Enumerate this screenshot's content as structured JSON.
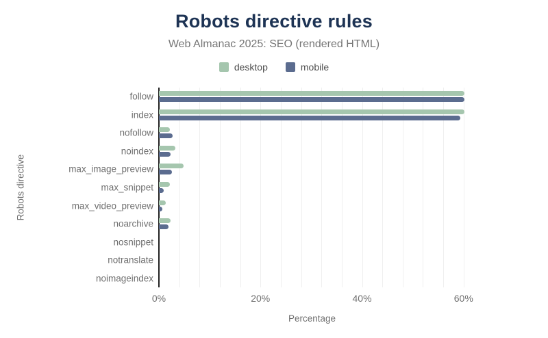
{
  "header": {
    "title": "Robots directive rules",
    "subtitle": "Web Almanac 2025: SEO (rendered HTML)"
  },
  "colors": {
    "title": "#1d3354",
    "subtitle": "#757575",
    "axis_line": "#222222",
    "gridline": "#efefef",
    "tick_label": "#6f6f6f",
    "desktop": "#a5c6ae",
    "mobile": "#5b6c8f"
  },
  "chart_data": {
    "type": "bar",
    "orientation": "horizontal",
    "title": "Robots directive rules",
    "subtitle": "Web Almanac 2025: SEO (rendered HTML)",
    "xlabel": "Percentage",
    "ylabel": "Robots directive",
    "categories": [
      "follow",
      "index",
      "nofollow",
      "noindex",
      "max_image_preview",
      "max_snippet",
      "max_video_preview",
      "noarchive",
      "nosnippet",
      "notranslate",
      "noimageindex"
    ],
    "series": [
      {
        "name": "desktop",
        "color": "#a5c6ae",
        "values": [
          60.1,
          60.1,
          2.2,
          3.3,
          4.8,
          2.1,
          1.4,
          2.3,
          0,
          0,
          0
        ]
      },
      {
        "name": "mobile",
        "color": "#5b6c8f",
        "values": [
          60.1,
          59.4,
          2.7,
          2.3,
          2.5,
          1.0,
          0.7,
          1.9,
          0,
          0,
          0
        ]
      }
    ],
    "x_ticks": [
      "0%",
      "20%",
      "40%",
      "60%"
    ],
    "x_tick_values": [
      0,
      20,
      40,
      60
    ],
    "xlim": [
      0,
      60.3
    ],
    "grid_step": 4,
    "grid": "minor vertical gridlines every 4%",
    "legend_position": "top"
  }
}
